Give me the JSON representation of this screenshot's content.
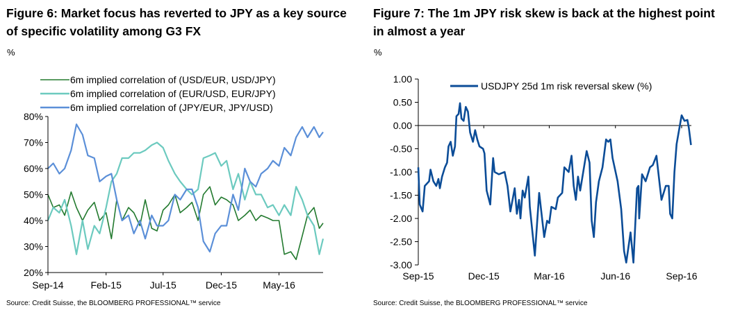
{
  "figure6": {
    "title": "Figure 6: Market focus has reverted to JPY as a key source of specific volatility among G3 FX",
    "unit": "%",
    "source": "Source: Credit Suisse, the BLOOMBERG PROFESSIONAL™ service"
  },
  "figure7": {
    "title": "Figure 7: The 1m JPY risk skew is back at the highest point in almost a year",
    "unit": "%",
    "source": "Source: Credit Suisse, the BLOOMBERG PROFESSIONAL™ service"
  },
  "chart_data": [
    {
      "type": "line",
      "title": "Figure 6: Market focus has reverted to JPY as a key source of specific volatility among G3 FX",
      "ylabel": "%",
      "ylim": [
        20,
        80
      ],
      "yticks": [
        "20%",
        "30%",
        "40%",
        "50%",
        "60%",
        "70%",
        "80%"
      ],
      "xticks": [
        [
          "2014-09-01",
          "Sep-14"
        ],
        [
          "2015-02-01",
          "Feb-15"
        ],
        [
          "2015-07-01",
          "Jul-15"
        ],
        [
          "2015-12-01",
          "Dec-15"
        ],
        [
          "2016-05-01",
          "May-16"
        ]
      ],
      "xlim": [
        "2014-09-01",
        "2016-08-25"
      ],
      "legend": "top",
      "grid": false,
      "x": [
        "2014-09-01",
        "2014-09-15",
        "2014-10-01",
        "2014-10-15",
        "2014-11-01",
        "2014-11-15",
        "2014-12-01",
        "2014-12-15",
        "2015-01-01",
        "2015-01-15",
        "2015-02-01",
        "2015-02-15",
        "2015-03-01",
        "2015-03-15",
        "2015-04-01",
        "2015-04-15",
        "2015-05-01",
        "2015-05-15",
        "2015-06-01",
        "2015-06-15",
        "2015-07-01",
        "2015-07-15",
        "2015-08-01",
        "2015-08-15",
        "2015-09-01",
        "2015-09-15",
        "2015-10-01",
        "2015-10-15",
        "2015-11-01",
        "2015-11-15",
        "2015-12-01",
        "2015-12-15",
        "2016-01-01",
        "2016-01-15",
        "2016-02-01",
        "2016-02-15",
        "2016-03-01",
        "2016-03-15",
        "2016-04-01",
        "2016-04-15",
        "2016-05-01",
        "2016-05-15",
        "2016-06-01",
        "2016-06-15",
        "2016-07-01",
        "2016-07-15",
        "2016-08-01",
        "2016-08-15",
        "2016-08-25"
      ],
      "series": [
        {
          "name": "6m implied correlation of (USD/EUR, USD/JPY)",
          "color": "#237a2f",
          "values": [
            50,
            45,
            46,
            42,
            51,
            45,
            40,
            44,
            47,
            40,
            43,
            33,
            48,
            40,
            45,
            43,
            38,
            48,
            37,
            36,
            44,
            46,
            50,
            43,
            45,
            47,
            40,
            50,
            53,
            46,
            49,
            48,
            46,
            40,
            42,
            44,
            40,
            42,
            41,
            40,
            40,
            27,
            28,
            25,
            34,
            42,
            45,
            37,
            39
          ]
        },
        {
          "name": "6m implied correlation of (EUR/USD, EUR/JPY)",
          "color": "#6ccabf",
          "values": [
            40,
            45,
            43,
            48,
            38,
            27,
            40,
            29,
            38,
            35,
            45,
            55,
            58,
            64,
            64,
            66,
            66,
            67,
            69,
            70,
            68,
            63,
            58,
            55,
            52,
            50,
            52,
            64,
            65,
            66,
            61,
            63,
            52,
            58,
            48,
            55,
            50,
            50,
            45,
            46,
            42,
            46,
            42,
            53,
            48,
            42,
            38,
            27,
            33
          ]
        },
        {
          "name": "6m implied correlation of (JPY/EUR, JPY/USD)",
          "color": "#5b8fd8",
          "values": [
            60,
            62,
            58,
            60,
            67,
            77,
            73,
            65,
            64,
            55,
            57,
            58,
            48,
            40,
            42,
            35,
            40,
            33,
            42,
            38,
            38,
            40,
            50,
            48,
            52,
            52,
            45,
            32,
            28,
            35,
            38,
            38,
            50,
            44,
            60,
            55,
            53,
            58,
            60,
            63,
            61,
            68,
            65,
            72,
            76,
            72,
            76,
            72,
            74
          ]
        }
      ]
    },
    {
      "type": "line",
      "title": "Figure 7: The 1m JPY risk skew is back at the highest point in almost a year",
      "ylabel": "%",
      "ylim": [
        -3.0,
        1.0
      ],
      "yticks": [
        "1.00",
        "0.50",
        "0.00",
        "-0.50",
        "-1.00",
        "-1.50",
        "-2.00",
        "-2.50",
        "-3.00"
      ],
      "xticks": [
        [
          "2015-09-01",
          "Sep-15"
        ],
        [
          "2015-12-01",
          "Dec-15"
        ],
        [
          "2016-03-01",
          "Mar-16"
        ],
        [
          "2016-06-01",
          "Jun-16"
        ],
        [
          "2016-09-01",
          "Sep-16"
        ]
      ],
      "xlim": [
        "2015-09-01",
        "2016-09-14"
      ],
      "legend": "top-right",
      "grid": false,
      "series": [
        {
          "name": "USDJPY 25d 1m risk reversal skew (%)",
          "color": "#0b4c97",
          "points": [
            [
              "2015-09-01",
              -0.9
            ],
            [
              "2015-09-03",
              -1.7
            ],
            [
              "2015-09-07",
              -1.85
            ],
            [
              "2015-09-10",
              -1.3
            ],
            [
              "2015-09-16",
              -1.2
            ],
            [
              "2015-09-18",
              -0.95
            ],
            [
              "2015-09-22",
              -1.2
            ],
            [
              "2015-09-26",
              -1.3
            ],
            [
              "2015-09-29",
              -1.15
            ],
            [
              "2015-10-01",
              -1.35
            ],
            [
              "2015-10-04",
              -1.1
            ],
            [
              "2015-10-08",
              -0.9
            ],
            [
              "2015-10-11",
              -0.8
            ],
            [
              "2015-10-13",
              -0.45
            ],
            [
              "2015-10-16",
              -0.35
            ],
            [
              "2015-10-19",
              -0.65
            ],
            [
              "2015-10-22",
              -0.45
            ],
            [
              "2015-10-24",
              0.2
            ],
            [
              "2015-10-27",
              0.25
            ],
            [
              "2015-10-29",
              0.48
            ],
            [
              "2015-10-31",
              0.15
            ],
            [
              "2015-11-03",
              0.1
            ],
            [
              "2015-11-06",
              0.4
            ],
            [
              "2015-11-09",
              0.3
            ],
            [
              "2015-11-12",
              -0.15
            ],
            [
              "2015-11-16",
              -0.35
            ],
            [
              "2015-11-19",
              -0.1
            ],
            [
              "2015-11-22",
              -0.3
            ],
            [
              "2015-11-25",
              -0.45
            ],
            [
              "2015-11-30",
              -0.5
            ],
            [
              "2015-12-02",
              -0.6
            ],
            [
              "2015-12-05",
              -1.4
            ],
            [
              "2015-12-10",
              -1.7
            ],
            [
              "2015-12-14",
              -0.7
            ],
            [
              "2015-12-16",
              -1.0
            ],
            [
              "2015-12-22",
              -1.05
            ],
            [
              "2015-12-30",
              -1.0
            ],
            [
              "2016-01-03",
              -1.3
            ],
            [
              "2016-01-07",
              -1.85
            ],
            [
              "2016-01-13",
              -1.35
            ],
            [
              "2016-01-16",
              -1.9
            ],
            [
              "2016-01-19",
              -1.6
            ],
            [
              "2016-01-21",
              -2.0
            ],
            [
              "2016-01-24",
              -1.4
            ],
            [
              "2016-01-27",
              -1.55
            ],
            [
              "2016-02-01",
              -1.1
            ],
            [
              "2016-02-03",
              -1.75
            ],
            [
              "2016-02-10",
              -2.8
            ],
            [
              "2016-02-16",
              -1.45
            ],
            [
              "2016-02-23",
              -2.4
            ],
            [
              "2016-02-27",
              -2.05
            ],
            [
              "2016-03-01",
              -2.1
            ],
            [
              "2016-03-04",
              -1.75
            ],
            [
              "2016-03-10",
              -1.8
            ],
            [
              "2016-03-13",
              -1.55
            ],
            [
              "2016-03-19",
              -1.45
            ],
            [
              "2016-03-22",
              -0.9
            ],
            [
              "2016-03-28",
              -1.0
            ],
            [
              "2016-04-01",
              -0.65
            ],
            [
              "2016-04-04",
              -1.3
            ],
            [
              "2016-04-07",
              -1.6
            ],
            [
              "2016-04-10",
              -1.1
            ],
            [
              "2016-04-13",
              -1.4
            ],
            [
              "2016-04-22",
              -0.55
            ],
            [
              "2016-04-26",
              -0.8
            ],
            [
              "2016-04-29",
              -2.05
            ],
            [
              "2016-05-02",
              -2.4
            ],
            [
              "2016-05-05",
              -1.65
            ],
            [
              "2016-05-09",
              -1.2
            ],
            [
              "2016-05-14",
              -0.9
            ],
            [
              "2016-05-19",
              -0.3
            ],
            [
              "2016-05-22",
              -0.35
            ],
            [
              "2016-05-25",
              -0.3
            ],
            [
              "2016-05-28",
              -0.7
            ],
            [
              "2016-06-04",
              -1.2
            ],
            [
              "2016-06-09",
              -1.8
            ],
            [
              "2016-06-13",
              -2.7
            ],
            [
              "2016-06-16",
              -2.95
            ],
            [
              "2016-06-22",
              -2.3
            ],
            [
              "2016-06-26",
              -2.95
            ],
            [
              "2016-07-01",
              -1.35
            ],
            [
              "2016-07-03",
              -1.3
            ],
            [
              "2016-07-04",
              -2.0
            ],
            [
              "2016-07-08",
              -1.05
            ],
            [
              "2016-07-13",
              -1.2
            ],
            [
              "2016-07-19",
              -0.9
            ],
            [
              "2016-07-23",
              -0.85
            ],
            [
              "2016-07-28",
              -0.65
            ],
            [
              "2016-08-01",
              -1.2
            ],
            [
              "2016-08-04",
              -1.6
            ],
            [
              "2016-08-10",
              -1.3
            ],
            [
              "2016-08-14",
              -1.3
            ],
            [
              "2016-08-16",
              -1.9
            ],
            [
              "2016-08-19",
              -2.0
            ],
            [
              "2016-08-22",
              -1.0
            ],
            [
              "2016-08-25",
              -0.4
            ],
            [
              "2016-09-01",
              0.22
            ],
            [
              "2016-09-05",
              0.1
            ],
            [
              "2016-09-09",
              0.12
            ],
            [
              "2016-09-11",
              -0.05
            ],
            [
              "2016-09-14",
              -0.42
            ]
          ]
        }
      ]
    }
  ]
}
